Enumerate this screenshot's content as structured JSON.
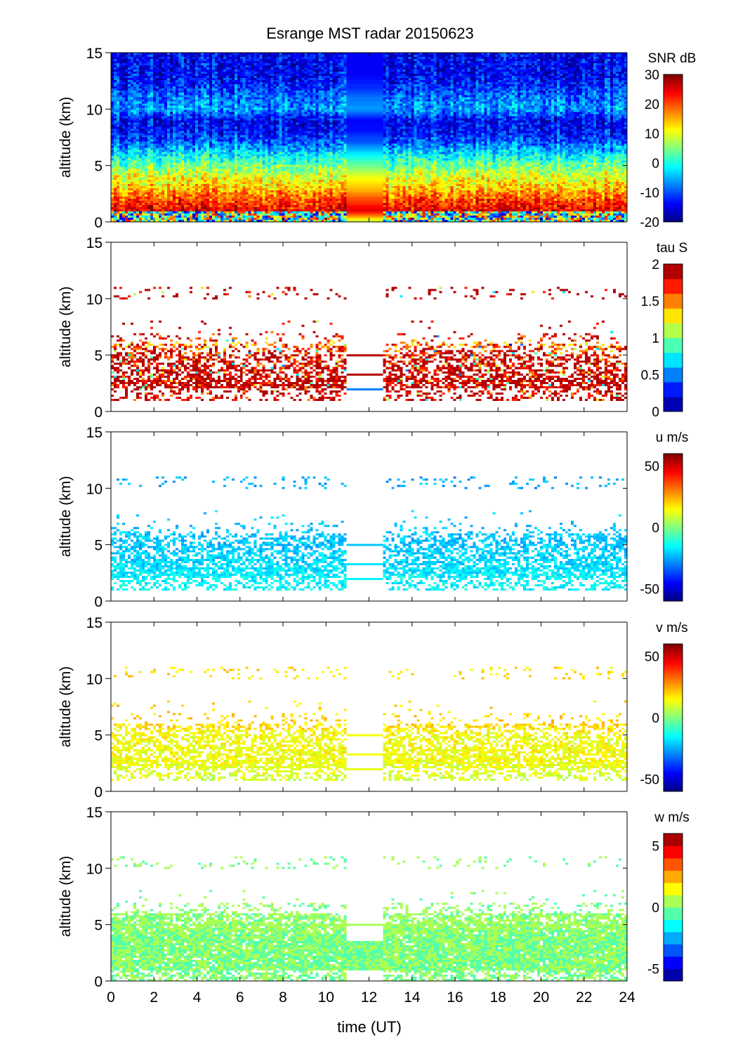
{
  "chart_data": {
    "title": "Esrange MST radar 20150623",
    "xlabel": "time (UT)",
    "xlim": [
      0,
      24
    ],
    "xticks": [
      0,
      2,
      4,
      6,
      8,
      10,
      12,
      14,
      16,
      18,
      20,
      22,
      24
    ],
    "data_gap_hours": [
      11,
      12.7
    ],
    "panels": [
      {
        "type": "heatmap",
        "ylabel": "altitude (km)",
        "ylim": [
          0,
          15
        ],
        "yticks": [
          0,
          5,
          10,
          15
        ],
        "colorbar_label": "SNR dB",
        "clim": [
          -20,
          30
        ],
        "cticks": [
          -20,
          -10,
          0,
          10,
          20,
          30
        ],
        "levels": 64,
        "mean_profile_by_km": [
          8,
          25,
          20,
          14,
          10,
          4,
          -2,
          -9,
          -13,
          -14,
          -6,
          -8,
          -12,
          -14,
          -14,
          -14
        ],
        "coverage_by_km": [
          1,
          1,
          1,
          1,
          1,
          1,
          1,
          1,
          1,
          1,
          1,
          1,
          1,
          1,
          1,
          1
        ]
      },
      {
        "type": "heatmap",
        "ylabel": "altitude (km)",
        "ylim": [
          0,
          15
        ],
        "yticks": [
          0,
          5,
          10,
          15
        ],
        "colorbar_label": "tau S",
        "clim": [
          0,
          2
        ],
        "cticks": [
          0,
          0.5,
          1,
          1.5,
          2
        ],
        "levels": 10,
        "mean_profile_by_km": [
          2,
          1.9,
          1.9,
          1.9,
          1.9,
          1.8,
          1.5,
          1.9,
          2,
          2,
          2,
          2,
          2,
          2,
          2,
          2
        ],
        "coverage_by_km": [
          0,
          0.35,
          0.75,
          0.6,
          0.55,
          0.45,
          0.15,
          0.03,
          0,
          0,
          0.12,
          0,
          0,
          0,
          0,
          0
        ]
      },
      {
        "type": "heatmap",
        "ylabel": "altitude (km)",
        "ylim": [
          0,
          15
        ],
        "yticks": [
          0,
          5,
          10,
          15
        ],
        "colorbar_label": "u m/s",
        "clim": [
          -60,
          60
        ],
        "cticks": [
          -50,
          0,
          50
        ],
        "levels": 64,
        "mean_profile_by_km": [
          -15,
          -15,
          -16,
          -18,
          -20,
          -22,
          -22,
          -22,
          -22,
          -22,
          -25,
          -25,
          -25,
          -25,
          -25,
          -25
        ],
        "coverage_by_km": [
          0,
          0.45,
          0.8,
          0.7,
          0.6,
          0.5,
          0.15,
          0.03,
          0,
          0,
          0.1,
          0,
          0,
          0,
          0,
          0
        ]
      },
      {
        "type": "heatmap",
        "ylabel": "altitude (km)",
        "ylim": [
          0,
          15
        ],
        "yticks": [
          0,
          5,
          10,
          15
        ],
        "colorbar_label": "v m/s",
        "clim": [
          -60,
          60
        ],
        "cticks": [
          -50,
          0,
          50
        ],
        "levels": 64,
        "mean_profile_by_km": [
          8,
          10,
          12,
          14,
          14,
          14,
          20,
          20,
          20,
          20,
          18,
          18,
          18,
          18,
          18,
          18
        ],
        "coverage_by_km": [
          0,
          0.45,
          0.8,
          0.7,
          0.6,
          0.5,
          0.15,
          0.03,
          0,
          0,
          0.1,
          0,
          0,
          0,
          0,
          0
        ]
      },
      {
        "type": "heatmap",
        "ylabel": "altitude (km)",
        "ylim": [
          0,
          15
        ],
        "yticks": [
          0,
          5,
          10,
          15
        ],
        "colorbar_label": "w m/s",
        "clim": [
          -6,
          6
        ],
        "cticks": [
          -5,
          0,
          5
        ],
        "levels": 12,
        "mean_profile_by_km": [
          0,
          0,
          0,
          0,
          0,
          0.3,
          0.2,
          0,
          0,
          0,
          0,
          0,
          0,
          0,
          0,
          0
        ],
        "coverage_by_km": [
          0.6,
          0.95,
          0.95,
          0.95,
          0.9,
          0.75,
          0.25,
          0.03,
          0,
          0,
          0.1,
          0,
          0,
          0,
          0,
          0
        ]
      }
    ]
  }
}
